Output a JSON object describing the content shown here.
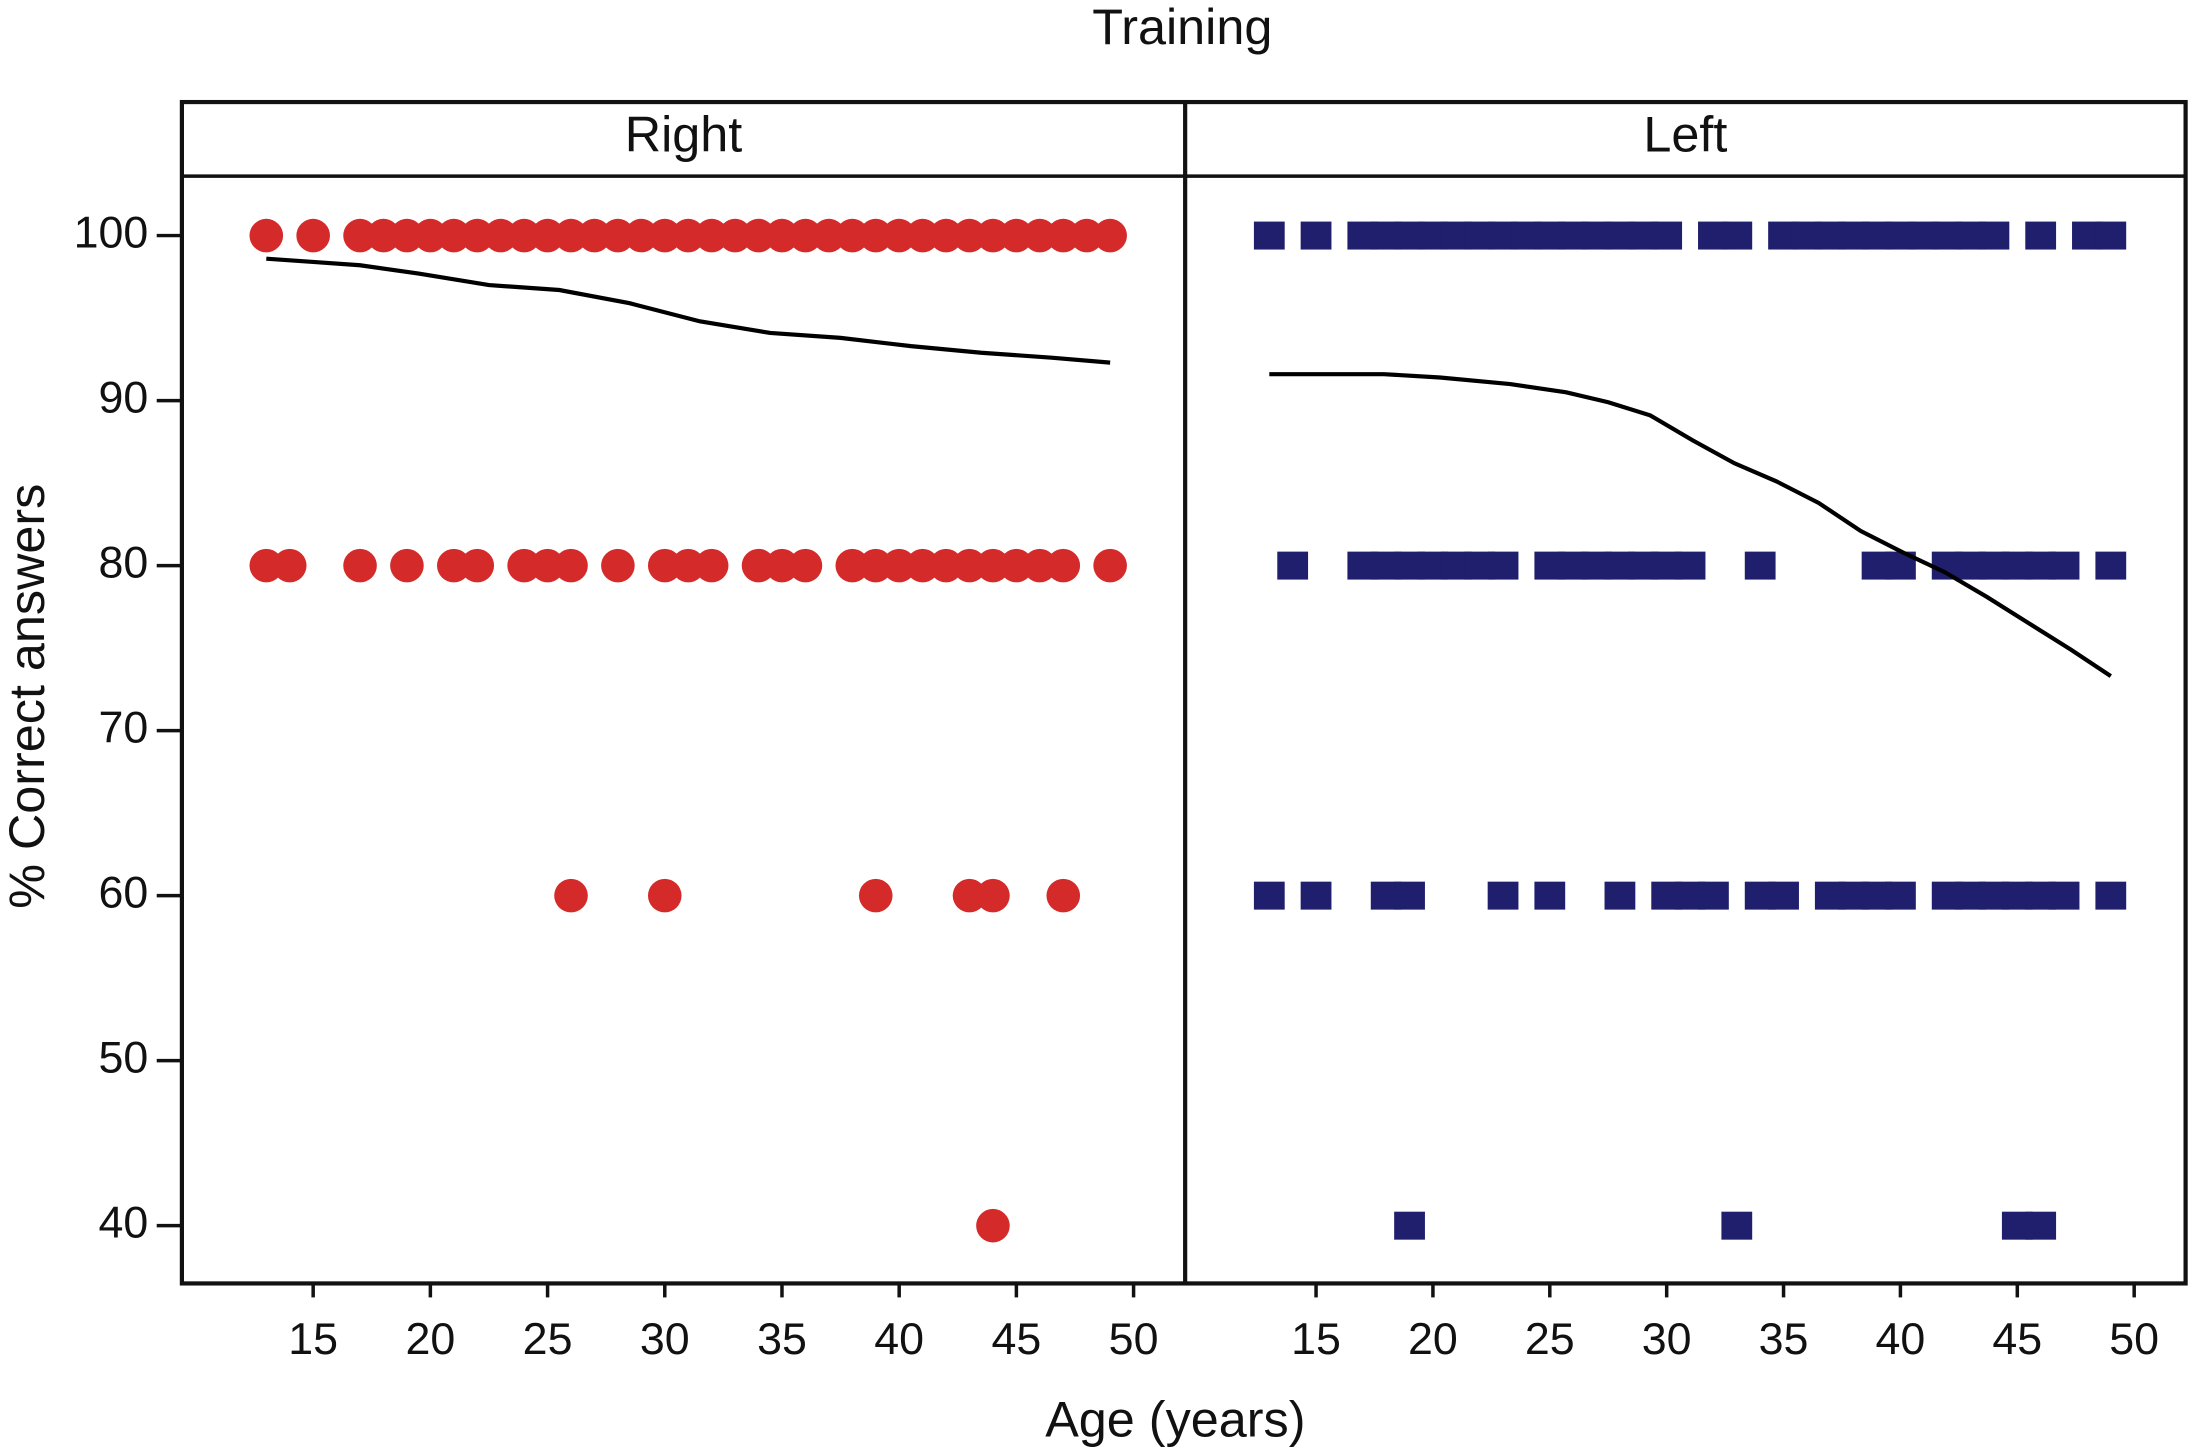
{
  "figure": {
    "title": "Training",
    "xlabel": "Age (years)",
    "ylabel": "% Correct answers"
  },
  "chart_data": [
    {
      "type": "scatter",
      "subtitle": "Right",
      "xlim": [
        9.4,
        52.2
      ],
      "ylim": [
        36.5,
        103.6
      ],
      "xticks": [
        15,
        20,
        25,
        30,
        35,
        40,
        45,
        50
      ],
      "yticks": [
        40,
        50,
        60,
        70,
        80,
        90,
        100
      ],
      "series": [
        {
          "type": "scatter",
          "marker": "circle",
          "color": "#d42a2a",
          "x": [
            13,
            15,
            17,
            18,
            19,
            20,
            21,
            22,
            23,
            24,
            25,
            26,
            27,
            28,
            29,
            30,
            31,
            32,
            33,
            34,
            35,
            36,
            37,
            38,
            39,
            40,
            41,
            42,
            43,
            44,
            45,
            46,
            47,
            48,
            49,
            13,
            14,
            17,
            19,
            21,
            22,
            24,
            25,
            26,
            28,
            30,
            31,
            32,
            34,
            35,
            36,
            38,
            39,
            40,
            41,
            42,
            43,
            44,
            45,
            46,
            47,
            49,
            26,
            30,
            39,
            43,
            44,
            47,
            44
          ],
          "values": [
            100,
            100,
            100,
            100,
            100,
            100,
            100,
            100,
            100,
            100,
            100,
            100,
            100,
            100,
            100,
            100,
            100,
            100,
            100,
            100,
            100,
            100,
            100,
            100,
            100,
            100,
            100,
            100,
            100,
            100,
            100,
            100,
            100,
            100,
            100,
            80,
            80,
            80,
            80,
            80,
            80,
            80,
            80,
            80,
            80,
            80,
            80,
            80,
            80,
            80,
            80,
            80,
            80,
            80,
            80,
            80,
            80,
            80,
            80,
            80,
            80,
            80,
            60,
            60,
            60,
            60,
            60,
            60,
            40
          ]
        },
        {
          "type": "line",
          "color": "#000000",
          "x": [
            13,
            15,
            17,
            19.5,
            22.5,
            25.5,
            28.5,
            31.5,
            34.5,
            37.5,
            40.5,
            43.5,
            46.5,
            49
          ],
          "values": [
            98.6,
            98.4,
            98.2,
            97.7,
            97,
            96.7,
            95.9,
            94.8,
            94.1,
            93.8,
            93.3,
            92.9,
            92.6,
            92.3
          ]
        }
      ]
    },
    {
      "type": "scatter",
      "subtitle": "Left",
      "xlim": [
        9.4,
        52.2
      ],
      "ylim": [
        36.5,
        103.6
      ],
      "xticks": [
        15,
        20,
        25,
        30,
        35,
        40,
        45,
        50
      ],
      "series": [
        {
          "type": "scatter",
          "marker": "square",
          "color": "#1f1f6e",
          "x": [
            13,
            15,
            17,
            18,
            19,
            20,
            21,
            22,
            23,
            24,
            25,
            26,
            27,
            28,
            29,
            30,
            32,
            33,
            35,
            36,
            37,
            38,
            39,
            40,
            41,
            42,
            43,
            44,
            46,
            48,
            49,
            14,
            17,
            18,
            19,
            20,
            21,
            22,
            23,
            25,
            26,
            27,
            28,
            29,
            30,
            31,
            34,
            39,
            40,
            42,
            43,
            44,
            45,
            46,
            47,
            49,
            13,
            15,
            18,
            19,
            23,
            25,
            28,
            30,
            31,
            32,
            34,
            35,
            37,
            38,
            39,
            40,
            42,
            43,
            44,
            45,
            46,
            47,
            49,
            19,
            33,
            45,
            46
          ],
          "values": [
            100,
            100,
            100,
            100,
            100,
            100,
            100,
            100,
            100,
            100,
            100,
            100,
            100,
            100,
            100,
            100,
            100,
            100,
            100,
            100,
            100,
            100,
            100,
            100,
            100,
            100,
            100,
            100,
            100,
            100,
            100,
            80,
            80,
            80,
            80,
            80,
            80,
            80,
            80,
            80,
            80,
            80,
            80,
            80,
            80,
            80,
            80,
            80,
            80,
            80,
            80,
            80,
            80,
            80,
            80,
            80,
            60,
            60,
            60,
            60,
            60,
            60,
            60,
            60,
            60,
            60,
            60,
            60,
            60,
            60,
            60,
            60,
            60,
            60,
            60,
            60,
            60,
            60,
            60,
            40,
            40,
            40,
            40
          ]
        },
        {
          "type": "line",
          "color": "#000000",
          "x": [
            13,
            17.9,
            20.3,
            23.3,
            25.7,
            27.5,
            29.3,
            31.1,
            32.9,
            34.7,
            36.5,
            38.3,
            40.1,
            41.9,
            43.7,
            45.5,
            47.3,
            49
          ],
          "values": [
            91.6,
            91.6,
            91.4,
            91,
            90.5,
            89.9,
            89.1,
            87.6,
            86.2,
            85.1,
            83.8,
            82.1,
            80.8,
            79.6,
            78.1,
            76.5,
            74.9,
            73.3
          ]
        }
      ]
    }
  ]
}
